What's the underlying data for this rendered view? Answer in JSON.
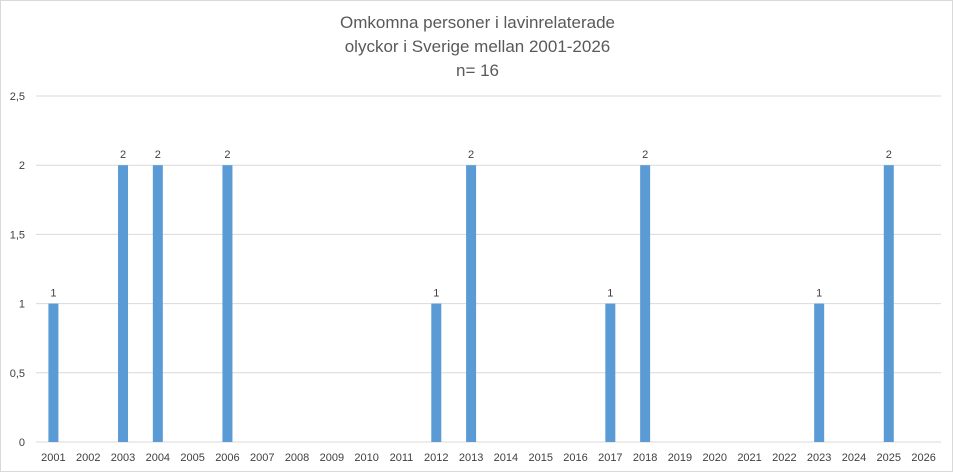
{
  "chart_data": {
    "type": "bar",
    "title_lines": [
      "Omkomna personer i lavinrelaterade",
      "olyckor i Sverige mellan 2001-2026",
      "n= 16"
    ],
    "categories": [
      "2001",
      "2002",
      "2003",
      "2004",
      "2005",
      "2006",
      "2007",
      "2008",
      "2009",
      "2010",
      "2011",
      "2012",
      "2013",
      "2014",
      "2015",
      "2016",
      "2017",
      "2018",
      "2019",
      "2020",
      "2021",
      "2022",
      "2023",
      "2024",
      "2025",
      "2026"
    ],
    "values": [
      1,
      0,
      2,
      2,
      0,
      2,
      0,
      0,
      0,
      0,
      0,
      1,
      2,
      0,
      0,
      0,
      1,
      2,
      0,
      0,
      0,
      0,
      1,
      0,
      2,
      0
    ],
    "data_labels": [
      "1",
      "",
      "2",
      "2",
      "",
      "2",
      "",
      "",
      "",
      "",
      "",
      "1",
      "2",
      "",
      "",
      "",
      "1",
      "2",
      "",
      "",
      "",
      "",
      "1",
      "",
      "2",
      ""
    ],
    "y_ticks": [
      "0",
      "0,5",
      "1",
      "1,5",
      "2",
      "2,5"
    ],
    "ylim": [
      0,
      2.5
    ],
    "grid": true,
    "legend": "none",
    "bar_color": "#5b9bd5",
    "grid_color": "#d9d9d9",
    "text_color": "#404040"
  }
}
